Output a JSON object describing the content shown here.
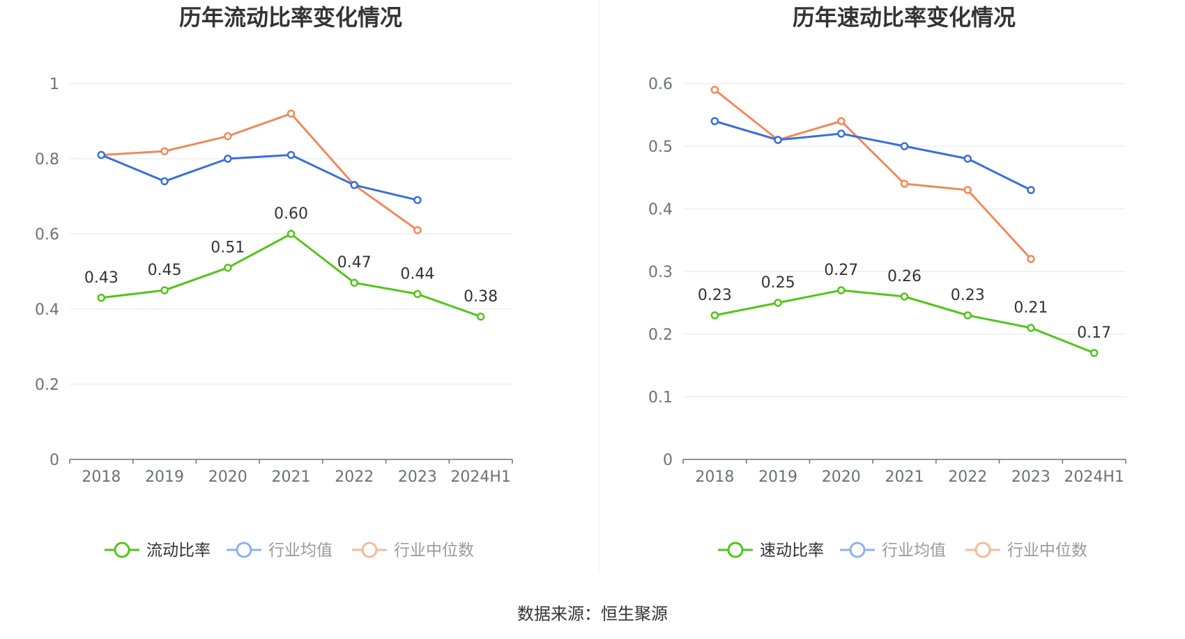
{
  "chart_data": [
    {
      "type": "line",
      "title": "历年流动比率变化情况",
      "categories": [
        "2018",
        "2019",
        "2020",
        "2021",
        "2022",
        "2023",
        "2024H1"
      ],
      "y_ticks": [
        "0",
        "0.2",
        "0.4",
        "0.6",
        "0.8",
        "1"
      ],
      "ylim": [
        0,
        1
      ],
      "series": [
        {
          "name": "流动比率",
          "color": "#52c41a",
          "values": [
            0.43,
            0.45,
            0.51,
            0.6,
            0.47,
            0.44,
            0.38
          ],
          "labels": [
            "0.43",
            "0.45",
            "0.51",
            "0.60",
            "0.47",
            "0.44",
            "0.38"
          ]
        },
        {
          "name": "行业均值",
          "color": "#3a6fd8",
          "values": [
            0.81,
            0.74,
            0.8,
            0.81,
            0.73,
            0.69,
            null
          ]
        },
        {
          "name": "行业中位数",
          "color": "#f0895a",
          "values": [
            0.81,
            0.82,
            0.86,
            0.92,
            0.73,
            0.61,
            null
          ]
        }
      ],
      "legend": [
        {
          "label": "流动比率",
          "color": "#52c41a",
          "text_color": "#333333"
        },
        {
          "label": "行业均值",
          "color": "#8fb0ef",
          "text_color": "#999999"
        },
        {
          "label": "行业中位数",
          "color": "#f6b89c",
          "text_color": "#999999"
        }
      ]
    },
    {
      "type": "line",
      "title": "历年速动比率变化情况",
      "categories": [
        "2018",
        "2019",
        "2020",
        "2021",
        "2022",
        "2023",
        "2024H1"
      ],
      "y_ticks": [
        "0",
        "0.1",
        "0.2",
        "0.3",
        "0.4",
        "0.5",
        "0.6"
      ],
      "ylim": [
        0,
        0.6
      ],
      "series": [
        {
          "name": "速动比率",
          "color": "#52c41a",
          "values": [
            0.23,
            0.25,
            0.27,
            0.26,
            0.23,
            0.21,
            0.17
          ],
          "labels": [
            "0.23",
            "0.25",
            "0.27",
            "0.26",
            "0.23",
            "0.21",
            "0.17"
          ]
        },
        {
          "name": "行业均值",
          "color": "#3a6fd8",
          "values": [
            0.54,
            0.51,
            0.52,
            0.5,
            0.48,
            0.43,
            null
          ]
        },
        {
          "name": "行业中位数",
          "color": "#f0895a",
          "values": [
            0.59,
            0.51,
            0.54,
            0.44,
            0.43,
            0.32,
            null
          ]
        }
      ],
      "legend": [
        {
          "label": "速动比率",
          "color": "#52c41a",
          "text_color": "#333333"
        },
        {
          "label": "行业均值",
          "color": "#8fb0ef",
          "text_color": "#999999"
        },
        {
          "label": "行业中位数",
          "color": "#f6b89c",
          "text_color": "#999999"
        }
      ]
    }
  ],
  "footer": {
    "source": "数据来源：恒生聚源"
  }
}
